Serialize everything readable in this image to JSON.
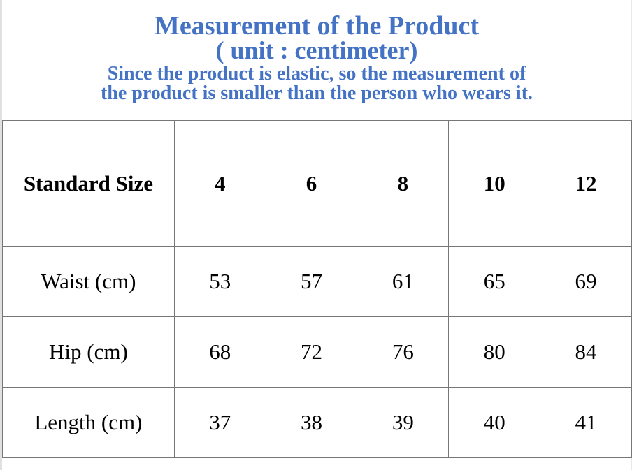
{
  "header": {
    "title": "Measurement of the Product",
    "unit": "( unit : centimeter)",
    "note_line1": "Since the product is elastic, so the measurement of",
    "note_line2": "the product is smaller than the person who wears it.",
    "color": "#4472C4"
  },
  "table": {
    "header": [
      "Standard Size",
      "4",
      "6",
      "8",
      "10",
      "12"
    ],
    "rows": [
      [
        "Waist (cm)",
        "53",
        "57",
        "61",
        "65",
        "69"
      ],
      [
        "Hip (cm)",
        "68",
        "72",
        "76",
        "80",
        "84"
      ],
      [
        "Length (cm)",
        "37",
        "38",
        "39",
        "40",
        "41"
      ]
    ]
  }
}
